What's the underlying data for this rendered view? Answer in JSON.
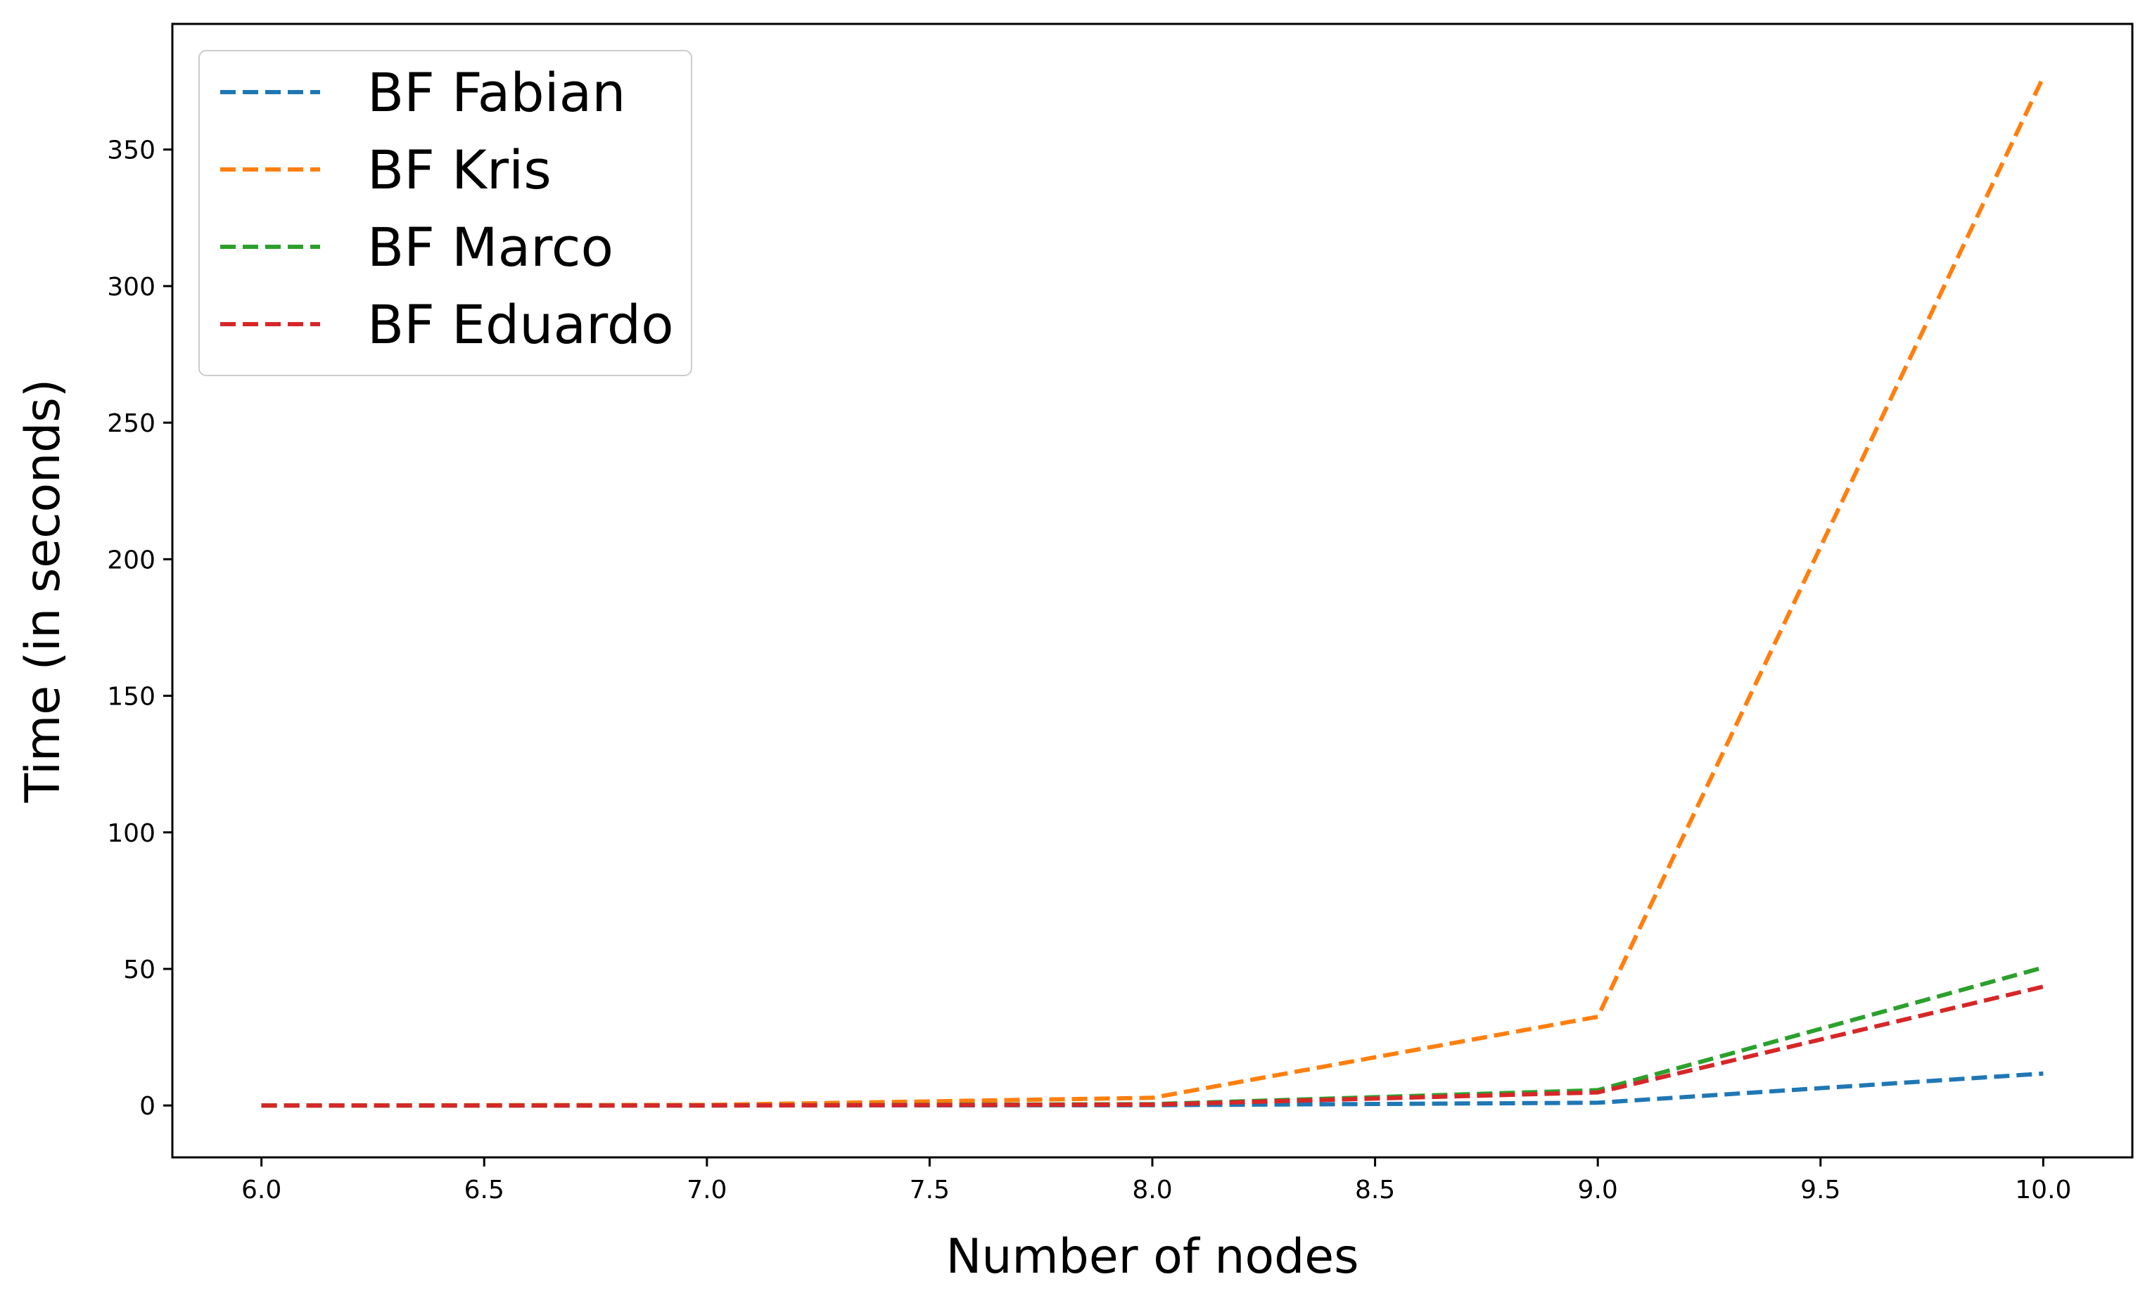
{
  "chart_data": {
    "type": "line",
    "title": "",
    "xlabel": "Number of nodes",
    "ylabel": "Time (in seconds)",
    "xlim": [
      5.8,
      10.2
    ],
    "ylim": [
      -19,
      396
    ],
    "x_ticks": [
      "6.0",
      "6.5",
      "7.0",
      "7.5",
      "8.0",
      "8.5",
      "9.0",
      "9.5",
      "10.0"
    ],
    "y_ticks": [
      "0",
      "50",
      "100",
      "150",
      "200",
      "250",
      "300",
      "350"
    ],
    "grid": false,
    "legend_position": "top-left",
    "line_style": "dashed",
    "x": [
      6,
      7,
      8,
      9,
      10
    ],
    "series": [
      {
        "name": "BF Fabian",
        "color": "#1f77b4",
        "values": [
          0.0,
          0.0,
          0.1,
          1.0,
          11.7
        ]
      },
      {
        "name": "BF Kris",
        "color": "#ff7f0e",
        "values": [
          0.0,
          0.2,
          2.8,
          32.5,
          376.5
        ]
      },
      {
        "name": "BF Marco",
        "color": "#2ca02c",
        "values": [
          0.0,
          0.0,
          0.5,
          5.6,
          50.5
        ]
      },
      {
        "name": "BF Eduardo",
        "color": "#d62728",
        "values": [
          0.0,
          0.0,
          0.3,
          4.8,
          43.5
        ]
      }
    ]
  }
}
